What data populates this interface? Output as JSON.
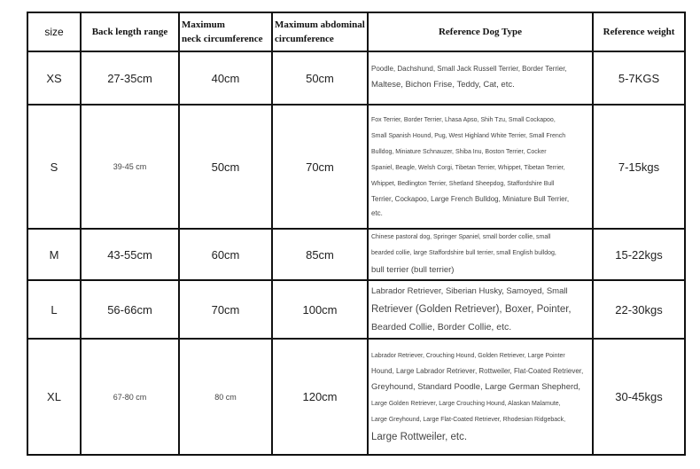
{
  "headers": [
    "size",
    "Back length range",
    "Maximum\nneck circumference",
    "Maximum abdominal\ncircumference",
    "Reference Dog Type",
    "Reference weight"
  ],
  "rows": [
    {
      "size": "XS",
      "back": "27-35cm",
      "neck": "40cm",
      "abdomen": "50cm",
      "dogs": [
        {
          "t": "Poodle, Dachshund, Small Jack Russell Terrier, Border Terrier,",
          "s": "s8"
        },
        {
          "t": "Maltese, Bichon Frise, Teddy, Cat, etc.",
          "s": "s9"
        }
      ],
      "weight": "5-7KGS"
    },
    {
      "size": "S",
      "back": "39-45 cm",
      "neck": "50cm",
      "abdomen": "70cm",
      "dogs": [
        {
          "t": "Fox Terrier, Border Terrier, Lhasa Apso, Shih Tzu, Small Cockapoo,",
          "s": "s7"
        },
        {
          "t": "Small Spanish Hound, Pug, West Highland White Terrier, Small French",
          "s": "s7"
        },
        {
          "t": "Bulldog, Miniature Schnauzer, Shiba Inu, Boston Terrier, Cocker",
          "s": "s7"
        },
        {
          "t": "Spaniel, Beagle, Welsh Corgi, Tibetan Terrier, Whippet, Tibetan Terrier,",
          "s": "s7"
        },
        {
          "t": "Whippet, Bedlington Terrier, Shetland Sheepdog, Staffordshire Bull",
          "s": "s7"
        },
        {
          "t": "Terrier, Cockapoo, Large French Bulldog, Miniature Bull Terrier,",
          "s": "s8"
        },
        {
          "t": "etc.",
          "s": "s8"
        }
      ],
      "weight": "7-15kgs"
    },
    {
      "size": "M",
      "back": "43-55cm",
      "neck": "60cm",
      "abdomen": "85cm",
      "dogs": [
        {
          "t": "Chinese pastoral dog, Springer Spaniel, small border collie, small",
          "s": "s7"
        },
        {
          "t": "bearded collie, large Staffordshire bull terrier, small English bulldog,",
          "s": "s7"
        },
        {
          "t": "bull terrier (bull terrier)",
          "s": "s9"
        }
      ],
      "weight": "15-22kgs"
    },
    {
      "size": "L",
      "back": "56-66cm",
      "neck": "70cm",
      "abdomen": "100cm",
      "dogs": [
        {
          "t": "Labrador Retriever, Siberian Husky, Samoyed, Small",
          "s": "s9"
        },
        {
          "t": "Retriever (Golden Retriever), Boxer, Pointer,",
          "s": "s11"
        },
        {
          "t": "Bearded Collie, Border Collie, etc.",
          "s": "s10"
        }
      ],
      "weight": "22-30kgs"
    },
    {
      "size": "XL",
      "back": "67-80 cm",
      "neck": "80 cm",
      "abdomen": "120cm",
      "dogs": [
        {
          "t": "Labrador Retriever, Crouching Hound, Golden Retriever, Large Pointer",
          "s": "s7"
        },
        {
          "t": "Hound, Large Labrador Retriever, Rottweiler, Flat-Coated Retriever,",
          "s": "s8"
        },
        {
          "t": "Greyhound, Standard Poodle, Large German Shepherd,",
          "s": "s9"
        },
        {
          "t": "Large Golden Retriever, Large Crouching Hound, Alaskan Malamute,",
          "s": "s7"
        },
        {
          "t": "Large Greyhound, Large Flat-Coated Retriever, Rhodesian Ridgeback,",
          "s": "s7"
        },
        {
          "t": "Large Rottweiler, etc.",
          "s": "s11"
        }
      ],
      "weight": "30-45kgs"
    }
  ]
}
